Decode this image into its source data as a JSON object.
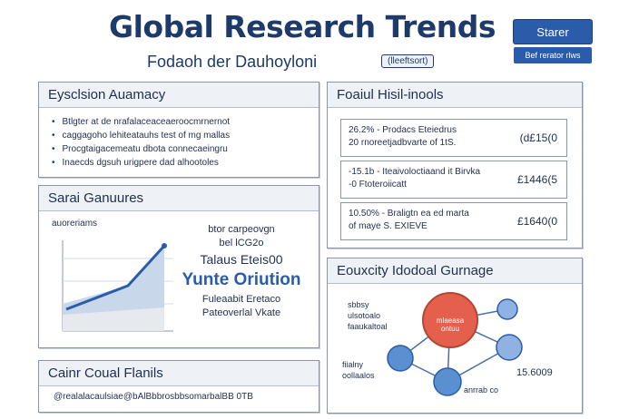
{
  "header": {
    "title": "Global Research Trends",
    "subtitle": "Fodaoh der Dauhoyloni",
    "badge": "(lleeftsort)",
    "primary_button": "Starer",
    "secondary_button": "Bef rerator rlws"
  },
  "executive_summary": {
    "heading": "Eysclsion Auamacy",
    "bullets": [
      "Btlgter at de nrafalaceaceaeroocmrnernot",
      "caggagoho lehiteatauhs test of mg mallas",
      "Procgtaigacemeatu dbota connecaeingru",
      "Inaecds dgsuh urigpere dad alhootoles"
    ]
  },
  "trends": {
    "heading": "Sarai Ganuures",
    "chart_label": "auoreriams",
    "metrics": {
      "line1": "btor carpeovgn",
      "line2": "bel lCG2o",
      "line3": "Talaus Eteis00",
      "headline": "Yunte Oriution",
      "line5": "Fuleaabit Eretaco",
      "line6": "Pateoverlal Vkate"
    }
  },
  "key_highlights": {
    "heading": "Foaiul Hisil-inools",
    "items": [
      {
        "line1": "26.2% - Prodacs Eteiedrus",
        "line2": "20 rnoreetjadbvarte of 1tS.",
        "value": "(d£15(0"
      },
      {
        "line1": "-15.1b - Iteaivoloctiaand it Birvka",
        "line2": "-0 Ftoteroiicatt",
        "value": "£1446(5"
      },
      {
        "line1": "10.50% - Braligtn ea ed marta",
        "line2": "of maye S. EXIEVE",
        "value": "£1640(0"
      }
    ]
  },
  "collaboration": {
    "heading": "Eouxcity Idodoal Gurnage",
    "labels": {
      "left1": "sbbsy",
      "left2": "ulsotoalo",
      "left3": "faaukaltoal",
      "left4": "fiialny",
      "left5": "oollaalos",
      "bottom": "anrrab co",
      "value": "15.6009",
      "center": "mlaeasa ontuu"
    }
  },
  "footer_panel": {
    "heading": "Cainr Coual Flanils",
    "text": "@realalacaulsiae@bAlBbbrosbbsomarbalBB 0TB"
  },
  "colors": {
    "navy": "#1e3a6a",
    "accent_blue": "#2a5caa",
    "hub_red": "#e4604c",
    "node_blue": "#5a8fd0"
  }
}
